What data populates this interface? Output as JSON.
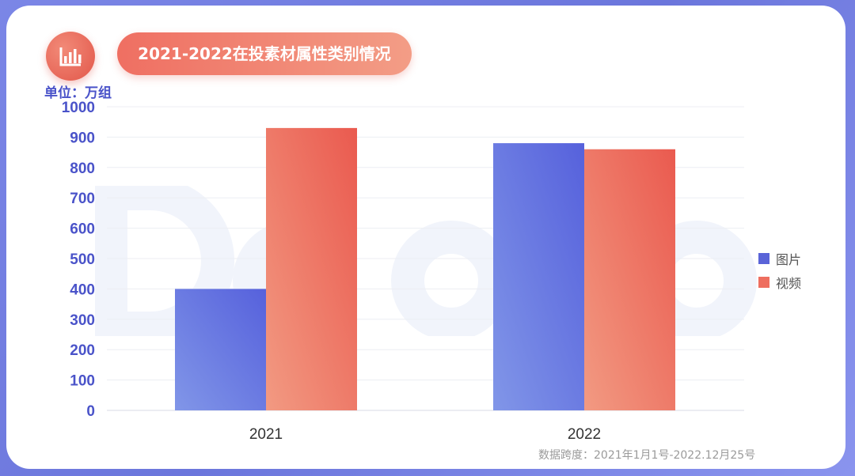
{
  "title": "2021-2022在投素材属性类别情况",
  "unit_label": "单位：万组",
  "source_note": "数据跨度：2021年1月1号-2022.12月25号",
  "icon": "bar-chart-icon",
  "colors": {
    "series_image": "#5a64d8",
    "series_video": "#ee6e5f",
    "axis_text": "#4a53c9"
  },
  "chart_data": {
    "type": "bar",
    "title": "2021-2022在投素材属性类别情况",
    "categories": [
      "2021",
      "2022"
    ],
    "series": [
      {
        "name": "图片",
        "values": [
          400,
          880
        ]
      },
      {
        "name": "视频",
        "values": [
          930,
          860
        ]
      }
    ],
    "ylabel": "单位：万组",
    "ylim": [
      0,
      1000
    ],
    "yticks": [
      0,
      100,
      200,
      300,
      400,
      500,
      600,
      700,
      800,
      900,
      1000
    ],
    "grid": true,
    "legend": "right"
  }
}
